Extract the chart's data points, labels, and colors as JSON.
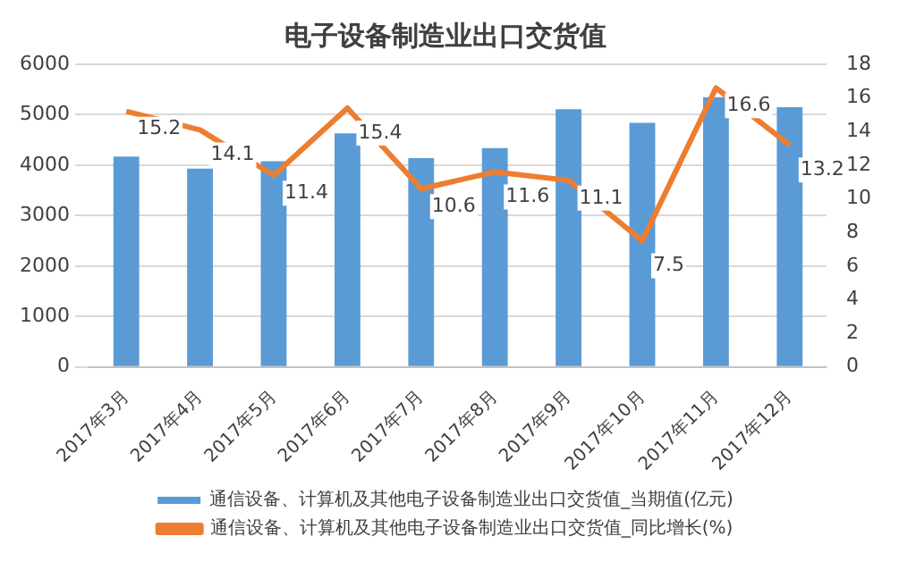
{
  "chart_data": {
    "type": "bar",
    "title": "电子设备制造业出口交货值",
    "categories": [
      "2017年3月",
      "2017年4月",
      "2017年5月",
      "2017年6月",
      "2017年7月",
      "2017年8月",
      "2017年9月",
      "2017年10月",
      "2017年11月",
      "2017年12月"
    ],
    "series": [
      {
        "name": "通信设备、计算机及其他电子设备制造业出口交货值_当期值(亿元)",
        "color": "#5b9bd5",
        "values": [
          4170,
          3930,
          4080,
          4630,
          4140,
          4340,
          5110,
          4840,
          5350,
          5150
        ]
      },
      {
        "name": "通信设备、计算机及其他电子设备制造业出口交货值_同比增长(%)",
        "type": "line",
        "axis": "y2",
        "color": "#ed7d31",
        "values": [
          15.2,
          14.1,
          11.4,
          15.4,
          10.6,
          11.6,
          11.1,
          7.5,
          16.6,
          13.2
        ],
        "value_labels": [
          "15.2",
          "14.1",
          "11.4",
          "15.4",
          "10.6",
          "11.6",
          "11.1",
          "7.5",
          "16.6",
          "13.2"
        ]
      }
    ],
    "ylim": [
      0,
      6000
    ],
    "yticks": [
      0,
      1000,
      2000,
      3000,
      4000,
      5000,
      6000
    ],
    "y2lim": [
      0,
      18
    ],
    "y2ticks": [
      0,
      2,
      4,
      6,
      8,
      10,
      12,
      14,
      16,
      18
    ],
    "grid": "y",
    "legend": "bottom",
    "marker": "none"
  }
}
